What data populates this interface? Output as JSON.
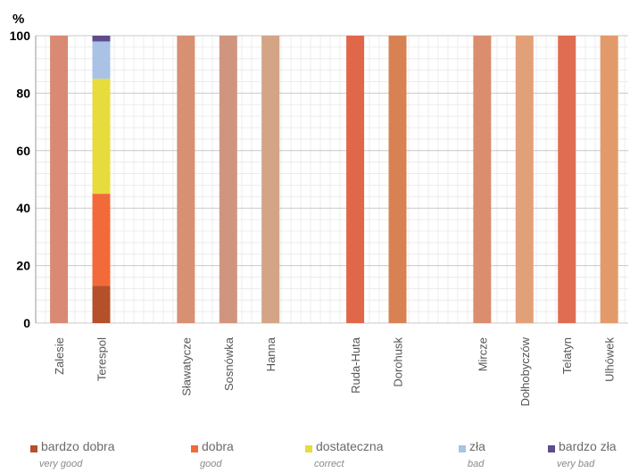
{
  "chart_data": {
    "type": "bar",
    "stacked": true,
    "ylabel": "%",
    "ylim": [
      0,
      100
    ],
    "yticks": [
      0,
      20,
      40,
      60,
      80,
      100
    ],
    "grid": true,
    "legend_position": "bottom",
    "categories": [
      "Zalesie",
      "Terespol",
      "",
      "Sławatycze",
      "Sosnówka",
      "Hanna",
      "",
      "Ruda-Huta",
      "Dorohusk",
      "",
      "Mircze",
      "Dołhobyczów",
      "Telatyn",
      "Ulhówek"
    ],
    "series": [
      {
        "name": "bardzo dobra",
        "subtitle": "very good",
        "color": "#b5502a",
        "values": [
          0,
          13,
          0,
          0,
          0,
          0,
          0,
          0,
          0,
          0,
          0,
          0,
          0,
          0
        ]
      },
      {
        "name": "dobra",
        "subtitle": "good",
        "color": "#f26a3a",
        "values": [
          0,
          32,
          0,
          0,
          0,
          0,
          0,
          0,
          0,
          0,
          0,
          0,
          0,
          0
        ]
      },
      {
        "name": "dostateczna",
        "subtitle": "correct",
        "color": "#e6dc3c",
        "values": [
          0,
          40,
          0,
          0,
          0,
          0,
          0,
          0,
          0,
          0,
          0,
          0,
          0,
          0
        ]
      },
      {
        "name": "zła",
        "subtitle": "bad",
        "color": "#a9c2e6",
        "values": [
          0,
          13,
          0,
          0,
          0,
          0,
          0,
          0,
          0,
          0,
          0,
          0,
          0,
          0
        ]
      },
      {
        "name": "bardzo zła",
        "subtitle": "very bad",
        "color": "#5e4d8c",
        "values": [
          0,
          2,
          0,
          0,
          0,
          0,
          0,
          0,
          0,
          0,
          0,
          0,
          0,
          0
        ]
      }
    ],
    "single_bar_colors": [
      "#d98a74",
      "",
      "",
      "#d79072",
      "#d0957f",
      "#d4a487",
      "",
      "#e0674a",
      "#d88254",
      "",
      "#da8e6e",
      "#e2a079",
      "#e06d51",
      "#e39a6a"
    ]
  }
}
